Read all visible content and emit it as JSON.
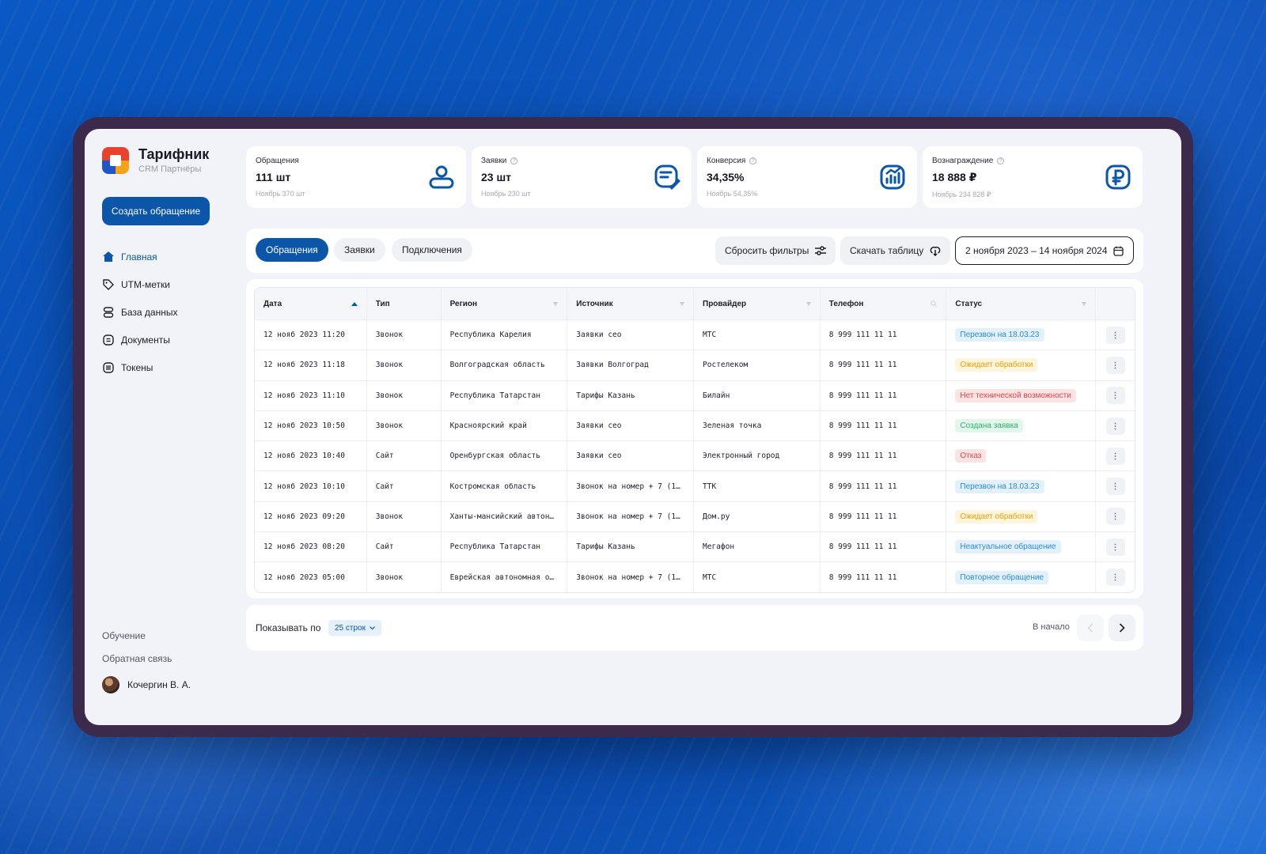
{
  "brand": {
    "title": "Тарифник",
    "subtitle": "CRM Партнёры"
  },
  "sidebar": {
    "create_label": "Создать обращение",
    "nav": [
      {
        "label": "Главная",
        "icon": "home-icon",
        "active": true
      },
      {
        "label": "UTM-метки",
        "icon": "tag-icon"
      },
      {
        "label": "База данных",
        "icon": "database-icon"
      },
      {
        "label": "Документы",
        "icon": "document-icon"
      },
      {
        "label": "Токены",
        "icon": "token-icon"
      }
    ],
    "links": {
      "learning": "Обучение",
      "feedback": "Обратная связь"
    },
    "user": {
      "name": "Кочергин В. А."
    }
  },
  "stats": [
    {
      "label": "Обращения",
      "value": "111 шт",
      "sub": "Ноябрь 370 шт",
      "icon": "user-icon"
    },
    {
      "label": "Заявки",
      "value": "23 шт",
      "sub": "Ноябрь 230 шт",
      "icon": "edit-document-icon"
    },
    {
      "label": "Конверсия",
      "value": "34,35%",
      "sub": "Ноябрь 54,35%",
      "icon": "chart-growth-icon"
    },
    {
      "label": "Вознаграждение",
      "value": "18 888 ₽",
      "sub": "Ноябрь 234 828 ₽",
      "icon": "ruble-icon"
    }
  ],
  "toolbar": {
    "tabs": [
      "Обращения",
      "Заявки",
      "Подключения"
    ],
    "reset_label": "Сбросить фильтры",
    "download_label": "Скачать таблицу",
    "date_range": "2 ноября 2023 – 14 ноября 2024"
  },
  "table": {
    "headers": [
      "Дата",
      "Тип",
      "Регион",
      "Источник",
      "Провайдер",
      "Телефон",
      "Статус"
    ],
    "rows": [
      {
        "date": "12 нояб 2023 11:20",
        "type": "Звонок",
        "region": "Республика Карелия",
        "source": "Заявки сео",
        "provider": "МТС",
        "phone": "8 999 111 11 11",
        "status": "Перезвон на 18.03.23",
        "status_color": "blue"
      },
      {
        "date": "12 нояб 2023 11:18",
        "type": "Звонок",
        "region": "Волгоградская область",
        "source": "Заявки Волгоград",
        "provider": "Ростелеком",
        "phone": "8 999 111 11 11",
        "status": "Ожидает обработки",
        "status_color": "yellow"
      },
      {
        "date": "12 нояб 2023 11:10",
        "type": "Звонок",
        "region": "Республика Татарстан",
        "source": "Тарифы Казань",
        "provider": "Билайн",
        "phone": "8 999 111 11 11",
        "status": "Нет технической возможности",
        "status_color": "red"
      },
      {
        "date": "12 нояб 2023 10:50",
        "type": "Звонок",
        "region": "Красноярский край",
        "source": "Заявки сео",
        "provider": "Зеленая точка",
        "phone": "8 999 111 11 11",
        "status": "Создана заявка",
        "status_color": "green"
      },
      {
        "date": "12 нояб 2023 10:40",
        "type": "Сайт",
        "region": "Оренбургская область",
        "source": "Заявки сео",
        "provider": "Электронный город",
        "phone": "8 999 111 11 11",
        "status": "Отказ",
        "status_color": "red"
      },
      {
        "date": "12 нояб 2023 10:10",
        "type": "Сайт",
        "region": "Костромская область",
        "source": "Звонок на номер + 7 (1…",
        "provider": "ТТК",
        "phone": "8 999 111 11 11",
        "status": "Перезвон на 18.03.23",
        "status_color": "blue"
      },
      {
        "date": "12 нояб 2023 09:20",
        "type": "Звонок",
        "region": "Ханты-мансийский автон…",
        "source": "Звонок на номер + 7 (1…",
        "provider": "Дом.ру",
        "phone": "8 999 111 11 11",
        "status": "Ожидает обработки",
        "status_color": "yellow"
      },
      {
        "date": "12 нояб 2023 08:20",
        "type": "Сайт",
        "region": "Республика Татарстан",
        "source": "Тарифы Казань",
        "provider": "Мегафон",
        "phone": "8 999 111 11 11",
        "status": "Неактуальное обращение",
        "status_color": "blue"
      },
      {
        "date": "12 нояб 2023 05:00",
        "type": "Звонок",
        "region": "Еврейская автономная о…",
        "source": "Звонок на номер + 7 (1…",
        "provider": "МТС",
        "phone": "8 999 111 11 11",
        "status": "Повторное обращение",
        "status_color": "blue"
      }
    ]
  },
  "pager": {
    "show_label": "Показывать по",
    "rows_option": "25 строк",
    "to_start": "В начало"
  }
}
